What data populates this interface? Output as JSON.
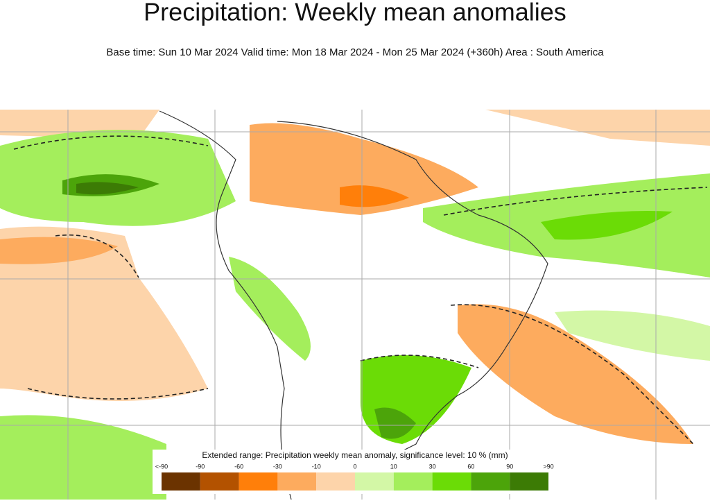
{
  "header": {
    "title": "Precipitation: Weekly mean anomalies",
    "subtitle": "Base time: Sun 10 Mar 2024 Valid time: Mon 18 Mar 2024 - Mon 25 Mar 2024 (+360h) Area : South America"
  },
  "legend": {
    "title": "Extended range: Precipitation weekly mean anomaly, significance level: 10 % (mm)",
    "labels": [
      "<-90",
      "-90",
      "-60",
      "-30",
      "-10",
      "0",
      "10",
      "30",
      "60",
      "90",
      ">90"
    ],
    "colors": [
      "#6b3300",
      "#b35200",
      "#ff7f0a",
      "#fdab5e",
      "#fdd4aa",
      "#d3f7a6",
      "#a4ee5c",
      "#6bdc06",
      "#4ca40a",
      "#3c7b05"
    ]
  }
}
